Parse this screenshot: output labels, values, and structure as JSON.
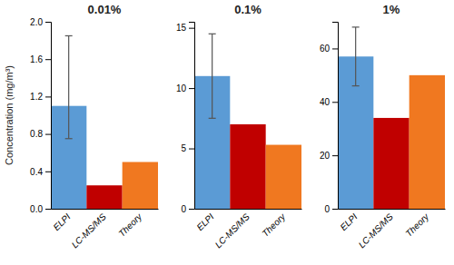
{
  "chart_data": [
    {
      "type": "bar",
      "title": "0.01%",
      "ylabel": "Concentration (mg/m³)",
      "categories": [
        "ELPI",
        "LC-MS/MS",
        "Theory"
      ],
      "values": [
        1.1,
        0.25,
        0.5
      ],
      "colors": [
        "#5b9bd5",
        "#c00000",
        "#f07820"
      ],
      "error_up": [
        0.75,
        null,
        null
      ],
      "error_down": [
        0.35,
        null,
        null
      ],
      "ylim": [
        0,
        2.0
      ],
      "yticks": [
        {
          "value": 0,
          "label": "0.0"
        },
        0.4,
        0.8,
        1.2,
        1.6,
        {
          "value": 2.0,
          "label": "2.0"
        }
      ],
      "grid": false
    },
    {
      "type": "bar",
      "title": "0.1%",
      "categories": [
        "ELPI",
        "LC-MS/MS",
        "Theory"
      ],
      "values": [
        11.0,
        7.0,
        5.3
      ],
      "colors": [
        "#5b9bd5",
        "#c00000",
        "#f07820"
      ],
      "error_up": [
        3.5,
        null,
        null
      ],
      "error_down": [
        3.5,
        null,
        null
      ],
      "ylim": [
        0,
        15.5
      ],
      "yticks": [
        0,
        5,
        10,
        15
      ],
      "grid": false
    },
    {
      "type": "bar",
      "title": "1%",
      "categories": [
        "ELPI",
        "LC-MS/MS",
        "Theory"
      ],
      "values": [
        57.0,
        34.0,
        50.0
      ],
      "colors": [
        "#5b9bd5",
        "#c00000",
        "#f07820"
      ],
      "error_up": [
        11.0,
        null,
        null
      ],
      "error_down": [
        11.0,
        null,
        null
      ],
      "ylim": [
        0,
        70
      ],
      "yticks": [
        0,
        20,
        40,
        60
      ],
      "grid": false
    }
  ]
}
